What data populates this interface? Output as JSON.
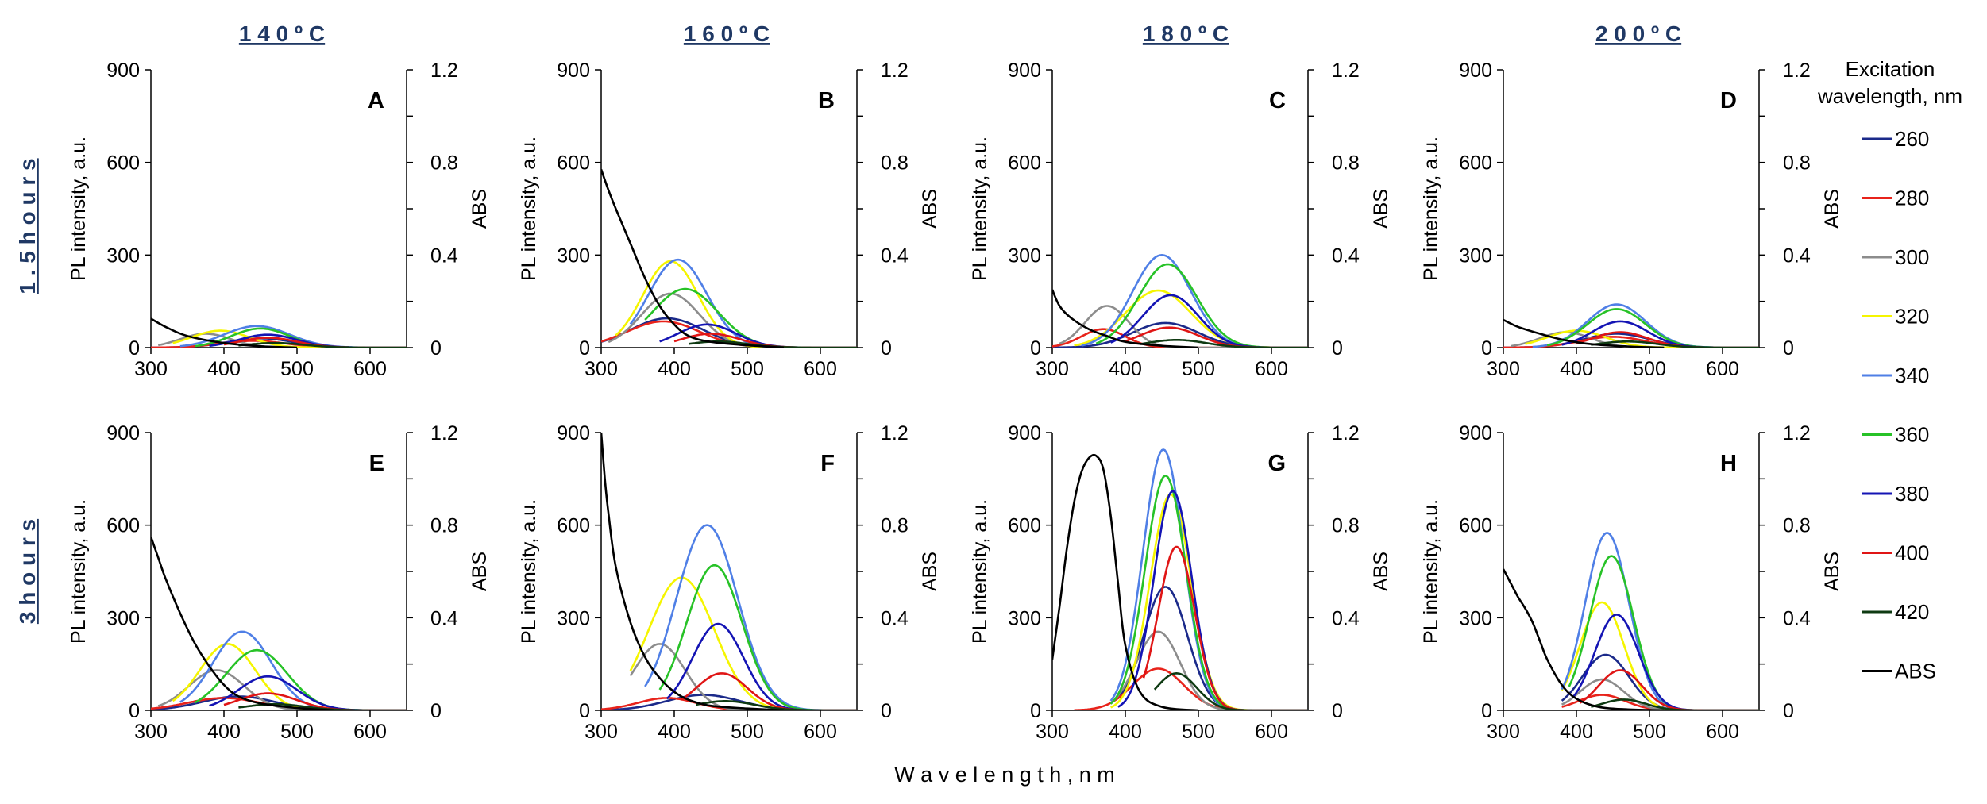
{
  "figure": {
    "column_headers": [
      "1 4 0 º C",
      "1 6 0 º C",
      "1 8 0 º C",
      "2 0 0 º C"
    ],
    "row_headers": [
      "1 . 5   h o u r s",
      "3   h o u r s"
    ],
    "xlabel": "W a v e l e n g t h ,   n m",
    "header_color": "#1F3864",
    "legend": {
      "title_lines": [
        "Excitation",
        "wavelength, nm"
      ],
      "entries": [
        {
          "label": "260",
          "color": "#1B2A8A"
        },
        {
          "label": "280",
          "color": "#E8231B"
        },
        {
          "label": "300",
          "color": "#8C8C8C"
        },
        {
          "label": "320",
          "color": "#F5F500"
        },
        {
          "label": "340",
          "color": "#4F7FE6"
        },
        {
          "label": "360",
          "color": "#27C227"
        },
        {
          "label": "380",
          "color": "#1414B4"
        },
        {
          "label": "400",
          "color": "#E01515"
        },
        {
          "label": "420",
          "color": "#0E3A12"
        },
        {
          "label": "ABS",
          "color": "#000000"
        }
      ]
    }
  },
  "chart_data": [
    {
      "panel": "A",
      "type": "line",
      "ylabel": "PL intensity, a.u.",
      "y2label": "ABS",
      "xlim": [
        300,
        650
      ],
      "ylim": [
        0,
        900
      ],
      "y2lim": [
        0,
        1.2
      ],
      "xticks": [
        "300",
        "400",
        "500",
        "600"
      ],
      "yticks": [
        "0",
        "300",
        "600",
        "900"
      ],
      "y2ticks": [
        "0",
        "0.4",
        "0.8",
        "1.2"
      ],
      "series": [
        {
          "name": "260",
          "peak": 30,
          "center": 450,
          "width": 45,
          "start": 300
        },
        {
          "name": "280",
          "peak": 22,
          "center": 440,
          "width": 45,
          "start": 300
        },
        {
          "name": "300",
          "peak": 45,
          "center": 375,
          "width": 35,
          "start": 310
        },
        {
          "name": "320",
          "peak": 55,
          "center": 395,
          "width": 40,
          "start": 330
        },
        {
          "name": "340",
          "peak": 70,
          "center": 445,
          "width": 45,
          "start": 340
        },
        {
          "name": "360",
          "peak": 62,
          "center": 450,
          "width": 40,
          "start": 360
        },
        {
          "name": "380",
          "peak": 42,
          "center": 460,
          "width": 40,
          "start": 380
        },
        {
          "name": "400",
          "peak": 32,
          "center": 460,
          "width": 40,
          "start": 400
        },
        {
          "name": "420",
          "peak": 15,
          "center": 470,
          "width": 40,
          "start": 420
        }
      ],
      "abs": {
        "x": [
          300,
          320,
          350,
          400,
          450,
          500
        ],
        "y": [
          0.125,
          0.09,
          0.05,
          0.02,
          0.006,
          0
        ]
      }
    },
    {
      "panel": "B",
      "type": "line",
      "ylabel": "PL intensity, a.u.",
      "y2label": "ABS",
      "xlim": [
        300,
        650
      ],
      "ylim": [
        0,
        900
      ],
      "y2lim": [
        0,
        1.2
      ],
      "xticks": [
        "300",
        "400",
        "500",
        "600"
      ],
      "yticks": [
        "0",
        "300",
        "600",
        "900"
      ],
      "y2ticks": [
        "0",
        "0.4",
        "0.8",
        "1.2"
      ],
      "series": [
        {
          "name": "260",
          "peak": 95,
          "center": 390,
          "width": 50,
          "start": 300
        },
        {
          "name": "280",
          "peak": 85,
          "center": 385,
          "width": 50,
          "start": 300
        },
        {
          "name": "300",
          "peak": 175,
          "center": 395,
          "width": 40,
          "start": 310
        },
        {
          "name": "320",
          "peak": 280,
          "center": 395,
          "width": 38,
          "start": 320
        },
        {
          "name": "340",
          "peak": 285,
          "center": 405,
          "width": 40,
          "start": 340
        },
        {
          "name": "360",
          "peak": 190,
          "center": 415,
          "width": 45,
          "start": 360
        },
        {
          "name": "380",
          "peak": 75,
          "center": 445,
          "width": 40,
          "start": 380
        },
        {
          "name": "400",
          "peak": 45,
          "center": 450,
          "width": 40,
          "start": 400
        },
        {
          "name": "420",
          "peak": 20,
          "center": 460,
          "width": 40,
          "start": 420
        }
      ],
      "abs": {
        "x": [
          300,
          310,
          320,
          340,
          360,
          380,
          400,
          420,
          450,
          500,
          550
        ],
        "y": [
          0.77,
          0.68,
          0.6,
          0.45,
          0.3,
          0.18,
          0.1,
          0.05,
          0.025,
          0.01,
          0
        ]
      }
    },
    {
      "panel": "C",
      "type": "line",
      "ylabel": "PL intensity, a.u.",
      "y2label": "ABS",
      "xlim": [
        300,
        650
      ],
      "ylim": [
        0,
        900
      ],
      "y2lim": [
        0,
        1.2
      ],
      "xticks": [
        "300",
        "400",
        "500",
        "600"
      ],
      "yticks": [
        "0",
        "300",
        "600",
        "900"
      ],
      "y2ticks": [
        "0",
        "0.4",
        "0.8",
        "1.2"
      ],
      "series": [
        {
          "name": "260",
          "peak": 80,
          "center": 455,
          "width": 45,
          "start": 300
        },
        {
          "name": "280",
          "peak": 60,
          "center": 370,
          "width": 30,
          "start": 300
        },
        {
          "name": "300",
          "peak": 135,
          "center": 375,
          "width": 30,
          "start": 310
        },
        {
          "name": "320",
          "peak": 185,
          "center": 445,
          "width": 45,
          "start": 330
        },
        {
          "name": "340",
          "peak": 300,
          "center": 450,
          "width": 40,
          "start": 340
        },
        {
          "name": "360",
          "peak": 270,
          "center": 458,
          "width": 40,
          "start": 360
        },
        {
          "name": "380",
          "peak": 170,
          "center": 462,
          "width": 38,
          "start": 380
        },
        {
          "name": "400",
          "peak": 65,
          "center": 460,
          "width": 40,
          "start": 400
        },
        {
          "name": "420",
          "peak": 25,
          "center": 470,
          "width": 40,
          "start": 420
        }
      ],
      "abs": {
        "x": [
          300,
          310,
          325,
          350,
          375,
          400,
          450,
          500
        ],
        "y": [
          0.25,
          0.18,
          0.13,
          0.08,
          0.05,
          0.025,
          0.008,
          0
        ]
      }
    },
    {
      "panel": "D",
      "type": "line",
      "ylabel": "PL intensity, a.u.",
      "y2label": "ABS",
      "xlim": [
        300,
        650
      ],
      "ylim": [
        0,
        900
      ],
      "y2lim": [
        0,
        1.2
      ],
      "xticks": [
        "300",
        "400",
        "500",
        "600"
      ],
      "yticks": [
        "0",
        "300",
        "600",
        "900"
      ],
      "y2ticks": [
        "0",
        "0.4",
        "0.8",
        "1.2"
      ],
      "series": [
        {
          "name": "260",
          "peak": 45,
          "center": 455,
          "width": 45,
          "start": 300
        },
        {
          "name": "280",
          "peak": 35,
          "center": 450,
          "width": 45,
          "start": 300
        },
        {
          "name": "300",
          "peak": 50,
          "center": 385,
          "width": 35,
          "start": 310
        },
        {
          "name": "320",
          "peak": 55,
          "center": 400,
          "width": 40,
          "start": 330
        },
        {
          "name": "340",
          "peak": 140,
          "center": 455,
          "width": 40,
          "start": 340
        },
        {
          "name": "360",
          "peak": 125,
          "center": 455,
          "width": 40,
          "start": 360
        },
        {
          "name": "380",
          "peak": 85,
          "center": 460,
          "width": 38,
          "start": 380
        },
        {
          "name": "400",
          "peak": 50,
          "center": 460,
          "width": 38,
          "start": 400
        },
        {
          "name": "420",
          "peak": 20,
          "center": 470,
          "width": 40,
          "start": 420
        }
      ],
      "abs": {
        "x": [
          300,
          320,
          350,
          380,
          420,
          470,
          520
        ],
        "y": [
          0.12,
          0.09,
          0.06,
          0.035,
          0.015,
          0.005,
          0
        ]
      }
    },
    {
      "panel": "E",
      "type": "line",
      "ylabel": "PL intensity, a.u.",
      "y2label": "ABS",
      "xlim": [
        300,
        650
      ],
      "ylim": [
        0,
        900
      ],
      "y2lim": [
        0,
        1.2
      ],
      "xticks": [
        "300",
        "400",
        "500",
        "600"
      ],
      "yticks": [
        "0",
        "300",
        "600",
        "900"
      ],
      "y2ticks": [
        "0",
        "0.4",
        "0.8",
        "1.2"
      ],
      "series": [
        {
          "name": "260",
          "peak": 45,
          "center": 420,
          "width": 50,
          "start": 300
        },
        {
          "name": "280",
          "peak": 40,
          "center": 400,
          "width": 50,
          "start": 300
        },
        {
          "name": "300",
          "peak": 130,
          "center": 390,
          "width": 38,
          "start": 310
        },
        {
          "name": "320",
          "peak": 215,
          "center": 405,
          "width": 38,
          "start": 330
        },
        {
          "name": "340",
          "peak": 255,
          "center": 425,
          "width": 40,
          "start": 340
        },
        {
          "name": "360",
          "peak": 195,
          "center": 445,
          "width": 42,
          "start": 360
        },
        {
          "name": "380",
          "peak": 110,
          "center": 460,
          "width": 40,
          "start": 380
        },
        {
          "name": "400",
          "peak": 55,
          "center": 460,
          "width": 40,
          "start": 400
        },
        {
          "name": "420",
          "peak": 20,
          "center": 470,
          "width": 40,
          "start": 420
        }
      ],
      "abs": {
        "x": [
          300,
          310,
          320,
          340,
          360,
          380,
          400,
          420,
          450,
          500,
          550
        ],
        "y": [
          0.75,
          0.66,
          0.57,
          0.42,
          0.29,
          0.19,
          0.11,
          0.06,
          0.03,
          0.01,
          0
        ]
      }
    },
    {
      "panel": "F",
      "type": "line",
      "ylabel": "PL intensity, a.u.",
      "y2label": "ABS",
      "xlim": [
        300,
        650
      ],
      "ylim": [
        0,
        900
      ],
      "y2lim": [
        0,
        1.2
      ],
      "xticks": [
        "300",
        "400",
        "500",
        "600"
      ],
      "yticks": [
        "0",
        "300",
        "600",
        "900"
      ],
      "y2ticks": [
        "0",
        "0.4",
        "0.8",
        "1.2"
      ],
      "series": [
        {
          "name": "260",
          "peak": 50,
          "center": 440,
          "width": 50,
          "start": 300
        },
        {
          "name": "280",
          "peak": 40,
          "center": 390,
          "width": 40,
          "start": 300
        },
        {
          "name": "300",
          "peak": 215,
          "center": 380,
          "width": 35,
          "start": 340
        },
        {
          "name": "320",
          "peak": 430,
          "center": 410,
          "width": 45,
          "start": 340
        },
        {
          "name": "340",
          "peak": 600,
          "center": 445,
          "width": 42,
          "start": 360
        },
        {
          "name": "360",
          "peak": 470,
          "center": 455,
          "width": 38,
          "start": 380
        },
        {
          "name": "380",
          "peak": 280,
          "center": 460,
          "width": 35,
          "start": 390
        },
        {
          "name": "400",
          "peak": 120,
          "center": 465,
          "width": 35,
          "start": 410
        },
        {
          "name": "420",
          "peak": 30,
          "center": 470,
          "width": 40,
          "start": 430
        }
      ],
      "abs": {
        "x": [
          300,
          305,
          310,
          320,
          340,
          360,
          380,
          400,
          420,
          450,
          500,
          550
        ],
        "y": [
          1.2,
          1.0,
          0.85,
          0.62,
          0.38,
          0.23,
          0.14,
          0.08,
          0.045,
          0.02,
          0.008,
          0
        ]
      }
    },
    {
      "panel": "G",
      "type": "line",
      "ylabel": "PL intensity, a.u.",
      "y2label": "ABS",
      "xlim": [
        300,
        650
      ],
      "ylim": [
        0,
        900
      ],
      "y2lim": [
        0,
        1.2
      ],
      "xticks": [
        "300",
        "400",
        "500",
        "600"
      ],
      "yticks": [
        "0",
        "300",
        "600",
        "900"
      ],
      "y2ticks": [
        "0",
        "0.4",
        "0.8",
        "1.2"
      ],
      "series": [
        {
          "name": "260",
          "peak": 400,
          "center": 455,
          "width": 30,
          "start": 390
        },
        {
          "name": "280",
          "peak": 135,
          "center": 445,
          "width": 35,
          "start": 330
        },
        {
          "name": "300",
          "peak": 255,
          "center": 445,
          "width": 30,
          "start": 380
        },
        {
          "name": "320",
          "peak": 700,
          "center": 462,
          "width": 28,
          "start": 380
        },
        {
          "name": "340",
          "peak": 845,
          "center": 452,
          "width": 28,
          "start": 380
        },
        {
          "name": "360",
          "peak": 760,
          "center": 455,
          "width": 28,
          "start": 380
        },
        {
          "name": "380",
          "peak": 710,
          "center": 465,
          "width": 26,
          "start": 390
        },
        {
          "name": "400",
          "peak": 530,
          "center": 470,
          "width": 25,
          "start": 425
        },
        {
          "name": "420",
          "peak": 120,
          "center": 470,
          "width": 28,
          "start": 440
        }
      ],
      "abs": {
        "x": [
          300,
          310,
          320,
          330,
          340,
          350,
          360,
          370,
          380,
          390,
          400,
          420,
          450,
          500
        ],
        "y": [
          0.22,
          0.45,
          0.7,
          0.9,
          1.03,
          1.09,
          1.1,
          1.04,
          0.84,
          0.55,
          0.28,
          0.08,
          0.015,
          0
        ]
      }
    },
    {
      "panel": "H",
      "type": "line",
      "ylabel": "PL intensity, a.u.",
      "y2label": "ABS",
      "xlim": [
        300,
        650
      ],
      "ylim": [
        0,
        900
      ],
      "y2lim": [
        0,
        1.2
      ],
      "xticks": [
        "300",
        "400",
        "500",
        "600"
      ],
      "yticks": [
        "0",
        "300",
        "600",
        "900"
      ],
      "y2ticks": [
        "0",
        "0.4",
        "0.8",
        "1.2"
      ],
      "series": [
        {
          "name": "260",
          "peak": 180,
          "center": 440,
          "width": 32,
          "start": 380
        },
        {
          "name": "280",
          "peak": 50,
          "center": 435,
          "width": 32,
          "start": 380
        },
        {
          "name": "300",
          "peak": 100,
          "center": 435,
          "width": 30,
          "start": 380
        },
        {
          "name": "320",
          "peak": 350,
          "center": 435,
          "width": 30,
          "start": 380
        },
        {
          "name": "340",
          "peak": 575,
          "center": 442,
          "width": 30,
          "start": 380
        },
        {
          "name": "360",
          "peak": 500,
          "center": 448,
          "width": 30,
          "start": 390
        },
        {
          "name": "380",
          "peak": 310,
          "center": 455,
          "width": 30,
          "start": 395
        },
        {
          "name": "400",
          "peak": 130,
          "center": 460,
          "width": 30,
          "start": 405
        },
        {
          "name": "420",
          "peak": 35,
          "center": 465,
          "width": 30,
          "start": 420
        }
      ],
      "abs": {
        "x": [
          300,
          310,
          320,
          330,
          340,
          350,
          360,
          380,
          400,
          430,
          470,
          520
        ],
        "y": [
          0.61,
          0.55,
          0.49,
          0.44,
          0.38,
          0.3,
          0.22,
          0.11,
          0.05,
          0.015,
          0.004,
          0
        ]
      }
    }
  ]
}
